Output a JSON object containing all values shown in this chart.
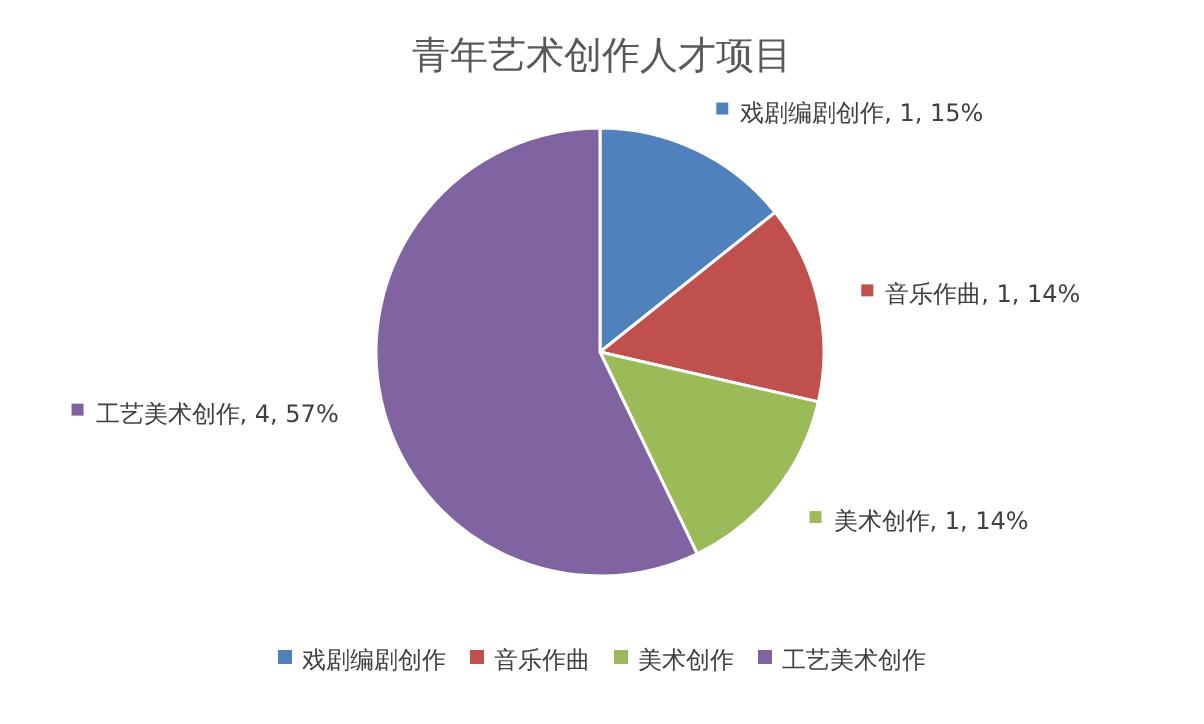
{
  "chart_data": {
    "type": "pie",
    "title": "青年艺术创作人才项目",
    "categories": [
      "戏剧编剧创作",
      "音乐作曲",
      "美术创作",
      "工艺美术创作"
    ],
    "values": [
      1,
      1,
      1,
      4
    ],
    "value_labels": [
      "戏剧编剧创作, 1, 15%",
      "音乐作曲, 1, 14%",
      "美术创作, 1, 14%",
      "工艺美术创作, 4, 57%"
    ],
    "colors": [
      "#4f81bd",
      "#c0504d",
      "#9bbb59",
      "#8064a2"
    ],
    "legend": "bottom"
  }
}
